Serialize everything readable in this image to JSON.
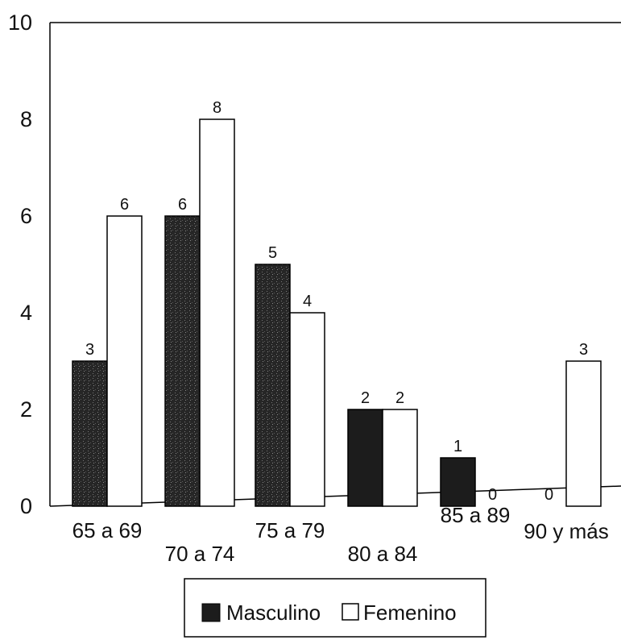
{
  "chart_data": {
    "type": "bar",
    "categories": [
      "65 a 69",
      "70 a 74",
      "75 a 79",
      "80 a 84",
      "85 a 89",
      "90 y más"
    ],
    "series": [
      {
        "name": "Masculino",
        "values": [
          3,
          6,
          5,
          2,
          1,
          0
        ]
      },
      {
        "name": "Femenino",
        "values": [
          6,
          8,
          4,
          2,
          0,
          3
        ]
      }
    ],
    "data_labels": {
      "Masculino": [
        "3",
        "6",
        "5",
        "2",
        "1",
        "0"
      ],
      "Femenino": [
        "6",
        "8",
        "4",
        "2",
        "0",
        "3"
      ]
    },
    "y_ticks": [
      "0",
      "2",
      "4",
      "6",
      "8",
      "10"
    ],
    "ylim": [
      0,
      10
    ],
    "title": "",
    "xlabel": "",
    "ylabel": "",
    "grid": false,
    "legend": {
      "position": "bottom-center",
      "entries": [
        "Masculino",
        "Femenino"
      ]
    },
    "colors": {
      "Masculino": "#1c1c1c",
      "Femenino": "#ffffff",
      "outline": "#000000"
    }
  }
}
